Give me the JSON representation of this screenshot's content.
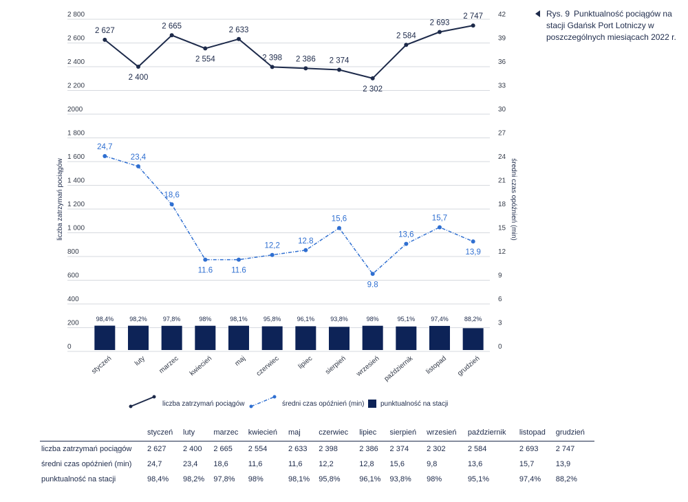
{
  "caption": {
    "figure": "Rys. 9",
    "text": "Punktualność pociągów na stacji Gdańsk Port Lotniczy w poszczególnych miesiącach 2022 r."
  },
  "chart_data": {
    "type": "bar+line",
    "categories": [
      "styczeń",
      "luty",
      "marzec",
      "kwiecień",
      "maj",
      "czerwiec",
      "lipiec",
      "sierpień",
      "wrzesień",
      "październik",
      "listopad",
      "grudzień"
    ],
    "left_axis": {
      "label": "liczba zatrzymań pociągów",
      "min": 0,
      "max": 2800,
      "ticks": [
        "0",
        "200",
        "400",
        "600",
        "800",
        "1 000",
        "1 200",
        "1 400",
        "1 600",
        "1 800",
        "2000",
        "2 200",
        "2 400",
        "2 600",
        "2 800"
      ]
    },
    "right_axis": {
      "label": "średni czas opóźnień (min)",
      "min": 0,
      "max": 42,
      "ticks": [
        "0",
        "3",
        "6",
        "9",
        "12",
        "15",
        "18",
        "21",
        "24",
        "27",
        "30",
        "33",
        "36",
        "39",
        "42"
      ]
    },
    "grid": true,
    "legend_position": "bottom",
    "series": [
      {
        "name": "liczba zatrzymań pociągów",
        "kind": "line",
        "axis": "left",
        "color": "#1d2a4a",
        "values": [
          2627,
          2400,
          2665,
          2554,
          2633,
          2398,
          2386,
          2374,
          2302,
          2584,
          2693,
          2747
        ],
        "labels": [
          "2 627",
          "2 400",
          "2 665",
          "2 554",
          "2 633",
          "2 398",
          "2 386",
          "2 374",
          "2 302",
          "2 584",
          "2 693",
          "2 747"
        ]
      },
      {
        "name": "średni czas opóźnień (min)",
        "kind": "dashdot-line",
        "axis": "right",
        "color": "#2f6fd1",
        "values": [
          24.7,
          23.4,
          18.6,
          11.6,
          11.6,
          12.2,
          12.8,
          15.6,
          9.8,
          13.6,
          15.7,
          13.9
        ],
        "labels": [
          "24,7",
          "23,4",
          "18,6",
          "11.6",
          "11.6",
          "12,2",
          "12.8",
          "15,6",
          "9.8",
          "13,6",
          "15,7",
          "13,9"
        ]
      },
      {
        "name": "punktualność na stacji",
        "kind": "bar",
        "unit": "%",
        "color": "#0d2357",
        "values": [
          98.4,
          98.2,
          97.8,
          98,
          98.1,
          95.8,
          96.1,
          93.8,
          98,
          95.1,
          97.4,
          88.2
        ],
        "labels": [
          "98,4%",
          "98,2%",
          "97,8%",
          "98%",
          "98,1%",
          "95,8%",
          "96,1%",
          "93,8%",
          "98%",
          "95,1%",
          "97,4%",
          "88,2%"
        ]
      }
    ]
  },
  "table": {
    "headers": [
      "",
      "styczeń",
      "luty",
      "marzec",
      "kwiecień",
      "maj",
      "czerwiec",
      "lipiec",
      "sierpień",
      "wrzesień",
      "październik",
      "listopad",
      "grudzień"
    ],
    "rows": [
      [
        "liczba zatrzymań pociągów",
        "2 627",
        "2 400",
        "2 665",
        "2 554",
        "2 633",
        "2 398",
        "2 386",
        "2 374",
        "2 302",
        "2 584",
        "2 693",
        "2 747"
      ],
      [
        "średni czas opóźnień (min)",
        "24,7",
        "23,4",
        "18,6",
        "11,6",
        "11,6",
        "12,2",
        "12,8",
        "15,6",
        "9,8",
        "13,6",
        "15,7",
        "13,9"
      ],
      [
        "punktualność na stacji",
        "98,4%",
        "98,2%",
        "97,8%",
        "98%",
        "98,1%",
        "95,8%",
        "96,1%",
        "93,8%",
        "98%",
        "95,1%",
        "97,4%",
        "88,2%"
      ]
    ]
  }
}
